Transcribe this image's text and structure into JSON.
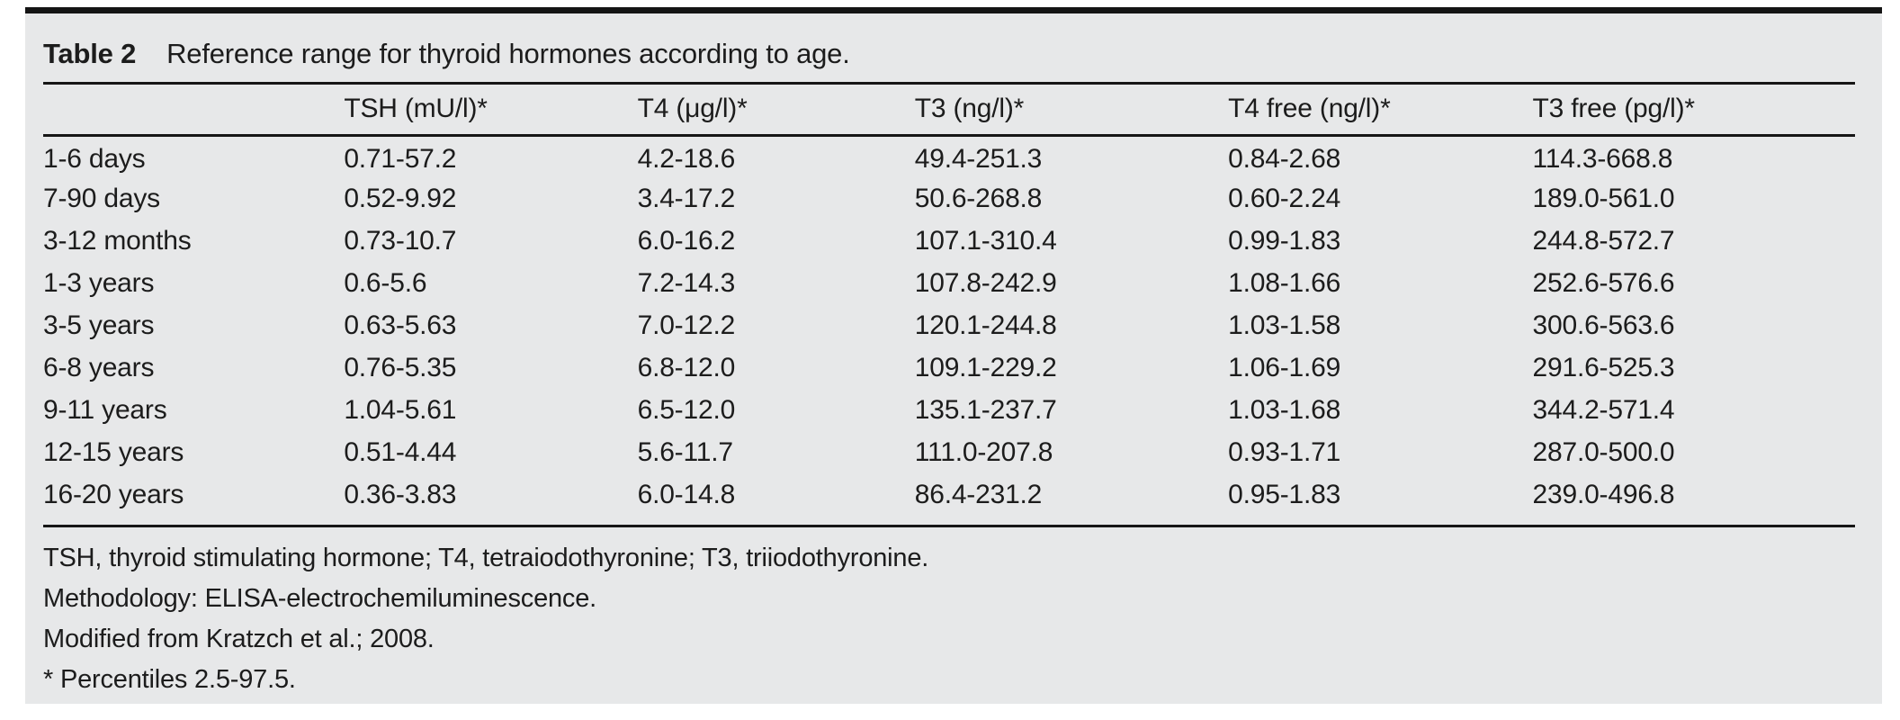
{
  "table": {
    "label": "Table 2",
    "title": "Reference range for thyroid hormones according to age.",
    "columns": [
      "",
      "TSH (mU/l)*",
      "T4 (μg/l)*",
      "T3 (ng/l)*",
      "T4 free (ng/l)*",
      "T3 free (pg/l)*"
    ],
    "row_keys": [
      "age",
      "tsh",
      "t4",
      "t3",
      "t4_free",
      "t3_free"
    ],
    "rows": [
      {
        "age": "1-6 days",
        "tsh": "0.71-57.2",
        "t4": "4.2-18.6",
        "t3": "49.4-251.3",
        "t4_free": "0.84-2.68",
        "t3_free": "114.3-668.8"
      },
      {
        "age": "7-90 days",
        "tsh": "0.52-9.92",
        "t4": "3.4-17.2",
        "t3": "50.6-268.8",
        "t4_free": "0.60-2.24",
        "t3_free": "189.0-561.0"
      },
      {
        "age": "3-12 months",
        "tsh": "0.73-10.7",
        "t4": "6.0-16.2",
        "t3": "107.1-310.4",
        "t4_free": "0.99-1.83",
        "t3_free": "244.8-572.7"
      },
      {
        "age": "1-3 years",
        "tsh": "0.6-5.6",
        "t4": "7.2-14.3",
        "t3": "107.8-242.9",
        "t4_free": "1.08-1.66",
        "t3_free": "252.6-576.6"
      },
      {
        "age": "3-5 years",
        "tsh": "0.63-5.63",
        "t4": "7.0-12.2",
        "t3": "120.1-244.8",
        "t4_free": "1.03-1.58",
        "t3_free": "300.6-563.6"
      },
      {
        "age": "6-8 years",
        "tsh": "0.76-5.35",
        "t4": "6.8-12.0",
        "t3": "109.1-229.2",
        "t4_free": "1.06-1.69",
        "t3_free": "291.6-525.3"
      },
      {
        "age": "9-11 years",
        "tsh": "1.04-5.61",
        "t4": "6.5-12.0",
        "t3": "135.1-237.7",
        "t4_free": "1.03-1.68",
        "t3_free": "344.2-571.4"
      },
      {
        "age": "12-15 years",
        "tsh": "0.51-4.44",
        "t4": "5.6-11.7",
        "t3": "111.0-207.8",
        "t4_free": "0.93-1.71",
        "t3_free": "287.0-500.0"
      },
      {
        "age": "16-20 years",
        "tsh": "0.36-3.83",
        "t4": "6.0-14.8",
        "t3": "86.4-231.2",
        "t4_free": "0.95-1.83",
        "t3_free": "239.0-496.8"
      }
    ],
    "footnotes": [
      "TSH, thyroid stimulating hormone; T4, tetraiodothyronine; T3, triiodothyronine.",
      "Methodology: ELISA-electrochemiluminescence.",
      "Modified from Kratzch et al.; 2008.",
      "* Percentiles 2.5-97.5."
    ]
  },
  "chart_data": {
    "type": "table",
    "title": "Table 2  Reference range for thyroid hormones according to age.",
    "columns": [
      "",
      "TSH (mU/l)*",
      "T4 (μg/l)*",
      "T3 (ng/l)*",
      "T4 free (ng/l)*",
      "T3 free (pg/l)*"
    ],
    "rows": [
      [
        "1-6 days",
        "0.71-57.2",
        "4.2-18.6",
        "49.4-251.3",
        "0.84-2.68",
        "114.3-668.8"
      ],
      [
        "7-90 days",
        "0.52-9.92",
        "3.4-17.2",
        "50.6-268.8",
        "0.60-2.24",
        "189.0-561.0"
      ],
      [
        "3-12 months",
        "0.73-10.7",
        "6.0-16.2",
        "107.1-310.4",
        "0.99-1.83",
        "244.8-572.7"
      ],
      [
        "1-3 years",
        "0.6-5.6",
        "7.2-14.3",
        "107.8-242.9",
        "1.08-1.66",
        "252.6-576.6"
      ],
      [
        "3-5 years",
        "0.63-5.63",
        "7.0-12.2",
        "120.1-244.8",
        "1.03-1.58",
        "300.6-563.6"
      ],
      [
        "6-8 years",
        "0.76-5.35",
        "6.8-12.0",
        "109.1-229.2",
        "1.06-1.69",
        "291.6-525.3"
      ],
      [
        "9-11 years",
        "1.04-5.61",
        "6.5-12.0",
        "135.1-237.7",
        "1.03-1.68",
        "344.2-571.4"
      ],
      [
        "12-15 years",
        "0.51-4.44",
        "5.6-11.7",
        "111.0-207.8",
        "0.93-1.71",
        "287.0-500.0"
      ],
      [
        "16-20 years",
        "0.36-3.83",
        "6.0-14.8",
        "86.4-231.2",
        "0.95-1.83",
        "239.0-496.8"
      ]
    ]
  },
  "colors": {
    "panel_background": "#e7e8e9",
    "text": "#1c1c1c",
    "rule": "#161616",
    "page_background": "#ffffff"
  }
}
